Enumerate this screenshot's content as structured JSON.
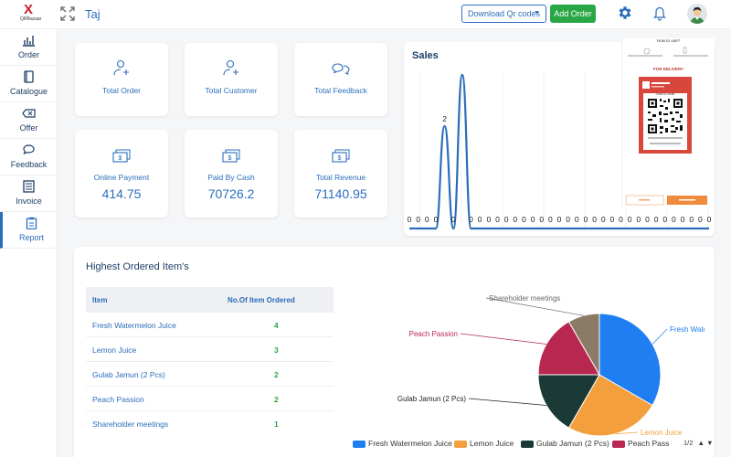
{
  "header": {
    "logo_letter": "X",
    "logo_sub": "QRBazaar",
    "shop_name": "Taj",
    "download_label": "Download Qr codes",
    "add_order_label": "Add Order"
  },
  "sidebar": {
    "items": [
      {
        "label": "Order",
        "icon": "chart-icon"
      },
      {
        "label": "Catalogue",
        "icon": "book-icon"
      },
      {
        "label": "Offer",
        "icon": "tag-icon"
      },
      {
        "label": "Feedback",
        "icon": "chat-icon"
      },
      {
        "label": "Invoice",
        "icon": "invoice-icon"
      },
      {
        "label": "Report",
        "icon": "clipboard-icon",
        "active": true
      }
    ]
  },
  "stats": {
    "total_order": "Total Order",
    "total_customer": "Total Customer",
    "total_feedback": "Total Feedback",
    "online_payment": {
      "label": "Online Payment",
      "value": "414.75"
    },
    "paid_by_cash": {
      "label": "Paid By Cash",
      "value": "70726.2"
    },
    "total_revenue": {
      "label": "Total Revenue",
      "value": "71140.95"
    }
  },
  "sales": {
    "title": "Sales",
    "chart_data": {
      "type": "line",
      "values": [
        0,
        0,
        0,
        0,
        2,
        0,
        3,
        0,
        0,
        0,
        0,
        0,
        0,
        0,
        0,
        0,
        0,
        0,
        0,
        0,
        0,
        0,
        0,
        0,
        0,
        0,
        0,
        0,
        0,
        0,
        0,
        0,
        0,
        0,
        0
      ],
      "data_labels": [
        "0",
        "0",
        "0",
        "0",
        "2",
        "0",
        "",
        "0",
        "0",
        "0",
        "0",
        "0",
        "0",
        "0",
        "0",
        "0",
        "0",
        "0",
        "0",
        "0",
        "0",
        "0",
        "0",
        "0",
        "0",
        "0",
        "0",
        "0",
        "0",
        "0",
        "0",
        "0",
        "0",
        "0",
        "0"
      ],
      "color": "#2a6ebb",
      "ylim": [
        0,
        3
      ]
    }
  },
  "qr_card": {
    "how_to_use": "How to use?",
    "for_delivery": "FOR DELIVERY",
    "scan_label": "Scan to order"
  },
  "highest_ordered": {
    "title": "Highest Ordered Item's",
    "col_item": "Item",
    "col_count": "No.Of Item Ordered",
    "rows": [
      {
        "item": "Fresh Watermelon Juice",
        "count": "4"
      },
      {
        "item": "Lemon Juice",
        "count": "3"
      },
      {
        "item": "Gulab Jamun (2 Pcs)",
        "count": "2"
      },
      {
        "item": "Peach Passion",
        "count": "2"
      },
      {
        "item": "Shareholder meetings",
        "count": "1"
      }
    ]
  },
  "pie": {
    "chart_data": {
      "type": "pie",
      "categories": [
        "Fresh Watermelon Juice",
        "Lemon Juice",
        "Gulab Jamun (2 Pcs)",
        "Peach Passion",
        "Shareholder meetings"
      ],
      "values": [
        4,
        3,
        2,
        2,
        1
      ],
      "colors": [
        "#1e7ef2",
        "#f39f3e",
        "#1b3a36",
        "#b8274f",
        "#8a7a66"
      ]
    },
    "legend_visible": [
      "Fresh Watermelon Juice",
      "Lemon Juice",
      "Gulab Jamun (2 Pcs)",
      "Peach Pass"
    ],
    "pager": "1/2"
  }
}
